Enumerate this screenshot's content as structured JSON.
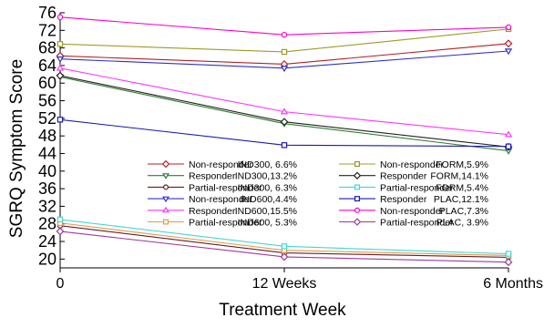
{
  "chart_data": {
    "type": "line",
    "xlabel": "Treatment Week",
    "ylabel": "SGRQ Symptom Score",
    "categories": [
      "0",
      "12 Weeks",
      "6 Months"
    ],
    "ylim": [
      18,
      76
    ],
    "yticks": [
      20,
      24,
      28,
      32,
      36,
      40,
      44,
      48,
      52,
      56,
      60,
      64,
      68,
      72,
      76
    ],
    "grid": false,
    "legend_position": "center-right",
    "series": [
      {
        "label": "Non-responder",
        "group": "IND300, 6.6%",
        "color": "#b22222",
        "marker": "diamond",
        "values": [
          66.2,
          64.3,
          69.0
        ]
      },
      {
        "label": "Responder",
        "group": "IND300,13.2%",
        "color": "#2e7d32",
        "marker": "triangle-down",
        "values": [
          61.4,
          50.8,
          44.6
        ]
      },
      {
        "label": "Partial-responder",
        "group": "IND300, 6.3%",
        "color": "#6b1e1e",
        "marker": "circle",
        "values": [
          27.6,
          21.4,
          20.4
        ]
      },
      {
        "label": "Non-responder",
        "group": "IND600,4.4%",
        "color": "#3030c8",
        "marker": "triangle-down",
        "values": [
          65.5,
          63.4,
          67.3
        ]
      },
      {
        "label": "Responder",
        "group": "IND600,15.5%",
        "color": "#ff33ff",
        "marker": "triangle-up",
        "values": [
          63.4,
          53.5,
          48.3
        ]
      },
      {
        "label": "Partial-responder",
        "group": "IND600, 5.3%",
        "color": "#e09a4a",
        "marker": "square",
        "values": [
          28.2,
          22.0,
          20.8
        ]
      },
      {
        "label": "Non-responder",
        "group": "FORM,5.9%",
        "color": "#9c9c28",
        "marker": "square",
        "values": [
          68.9,
          67.1,
          72.3
        ]
      },
      {
        "label": "Responder",
        "group": "FORM,14.1%",
        "color": "#222222",
        "marker": "diamond",
        "values": [
          61.7,
          51.2,
          45.5
        ]
      },
      {
        "label": "Partial-responder",
        "group": "FORM,5.4%",
        "color": "#40d8d8",
        "marker": "square",
        "values": [
          29.0,
          22.9,
          21.2
        ]
      },
      {
        "label": "Responder",
        "group": "PLAC,12.1%",
        "color": "#1a1ab4",
        "marker": "square",
        "values": [
          51.7,
          45.9,
          45.6
        ]
      },
      {
        "label": "Non-responder",
        "group": "PLAC,7.3%",
        "color": "#ff00cc",
        "marker": "circle",
        "values": [
          75.0,
          71.0,
          72.7
        ]
      },
      {
        "label": "Partial-responder",
        "group": "PLAC, 3.9%",
        "color": "#9a3aa0",
        "marker": "diamond",
        "values": [
          26.3,
          20.5,
          19.3
        ]
      }
    ]
  }
}
